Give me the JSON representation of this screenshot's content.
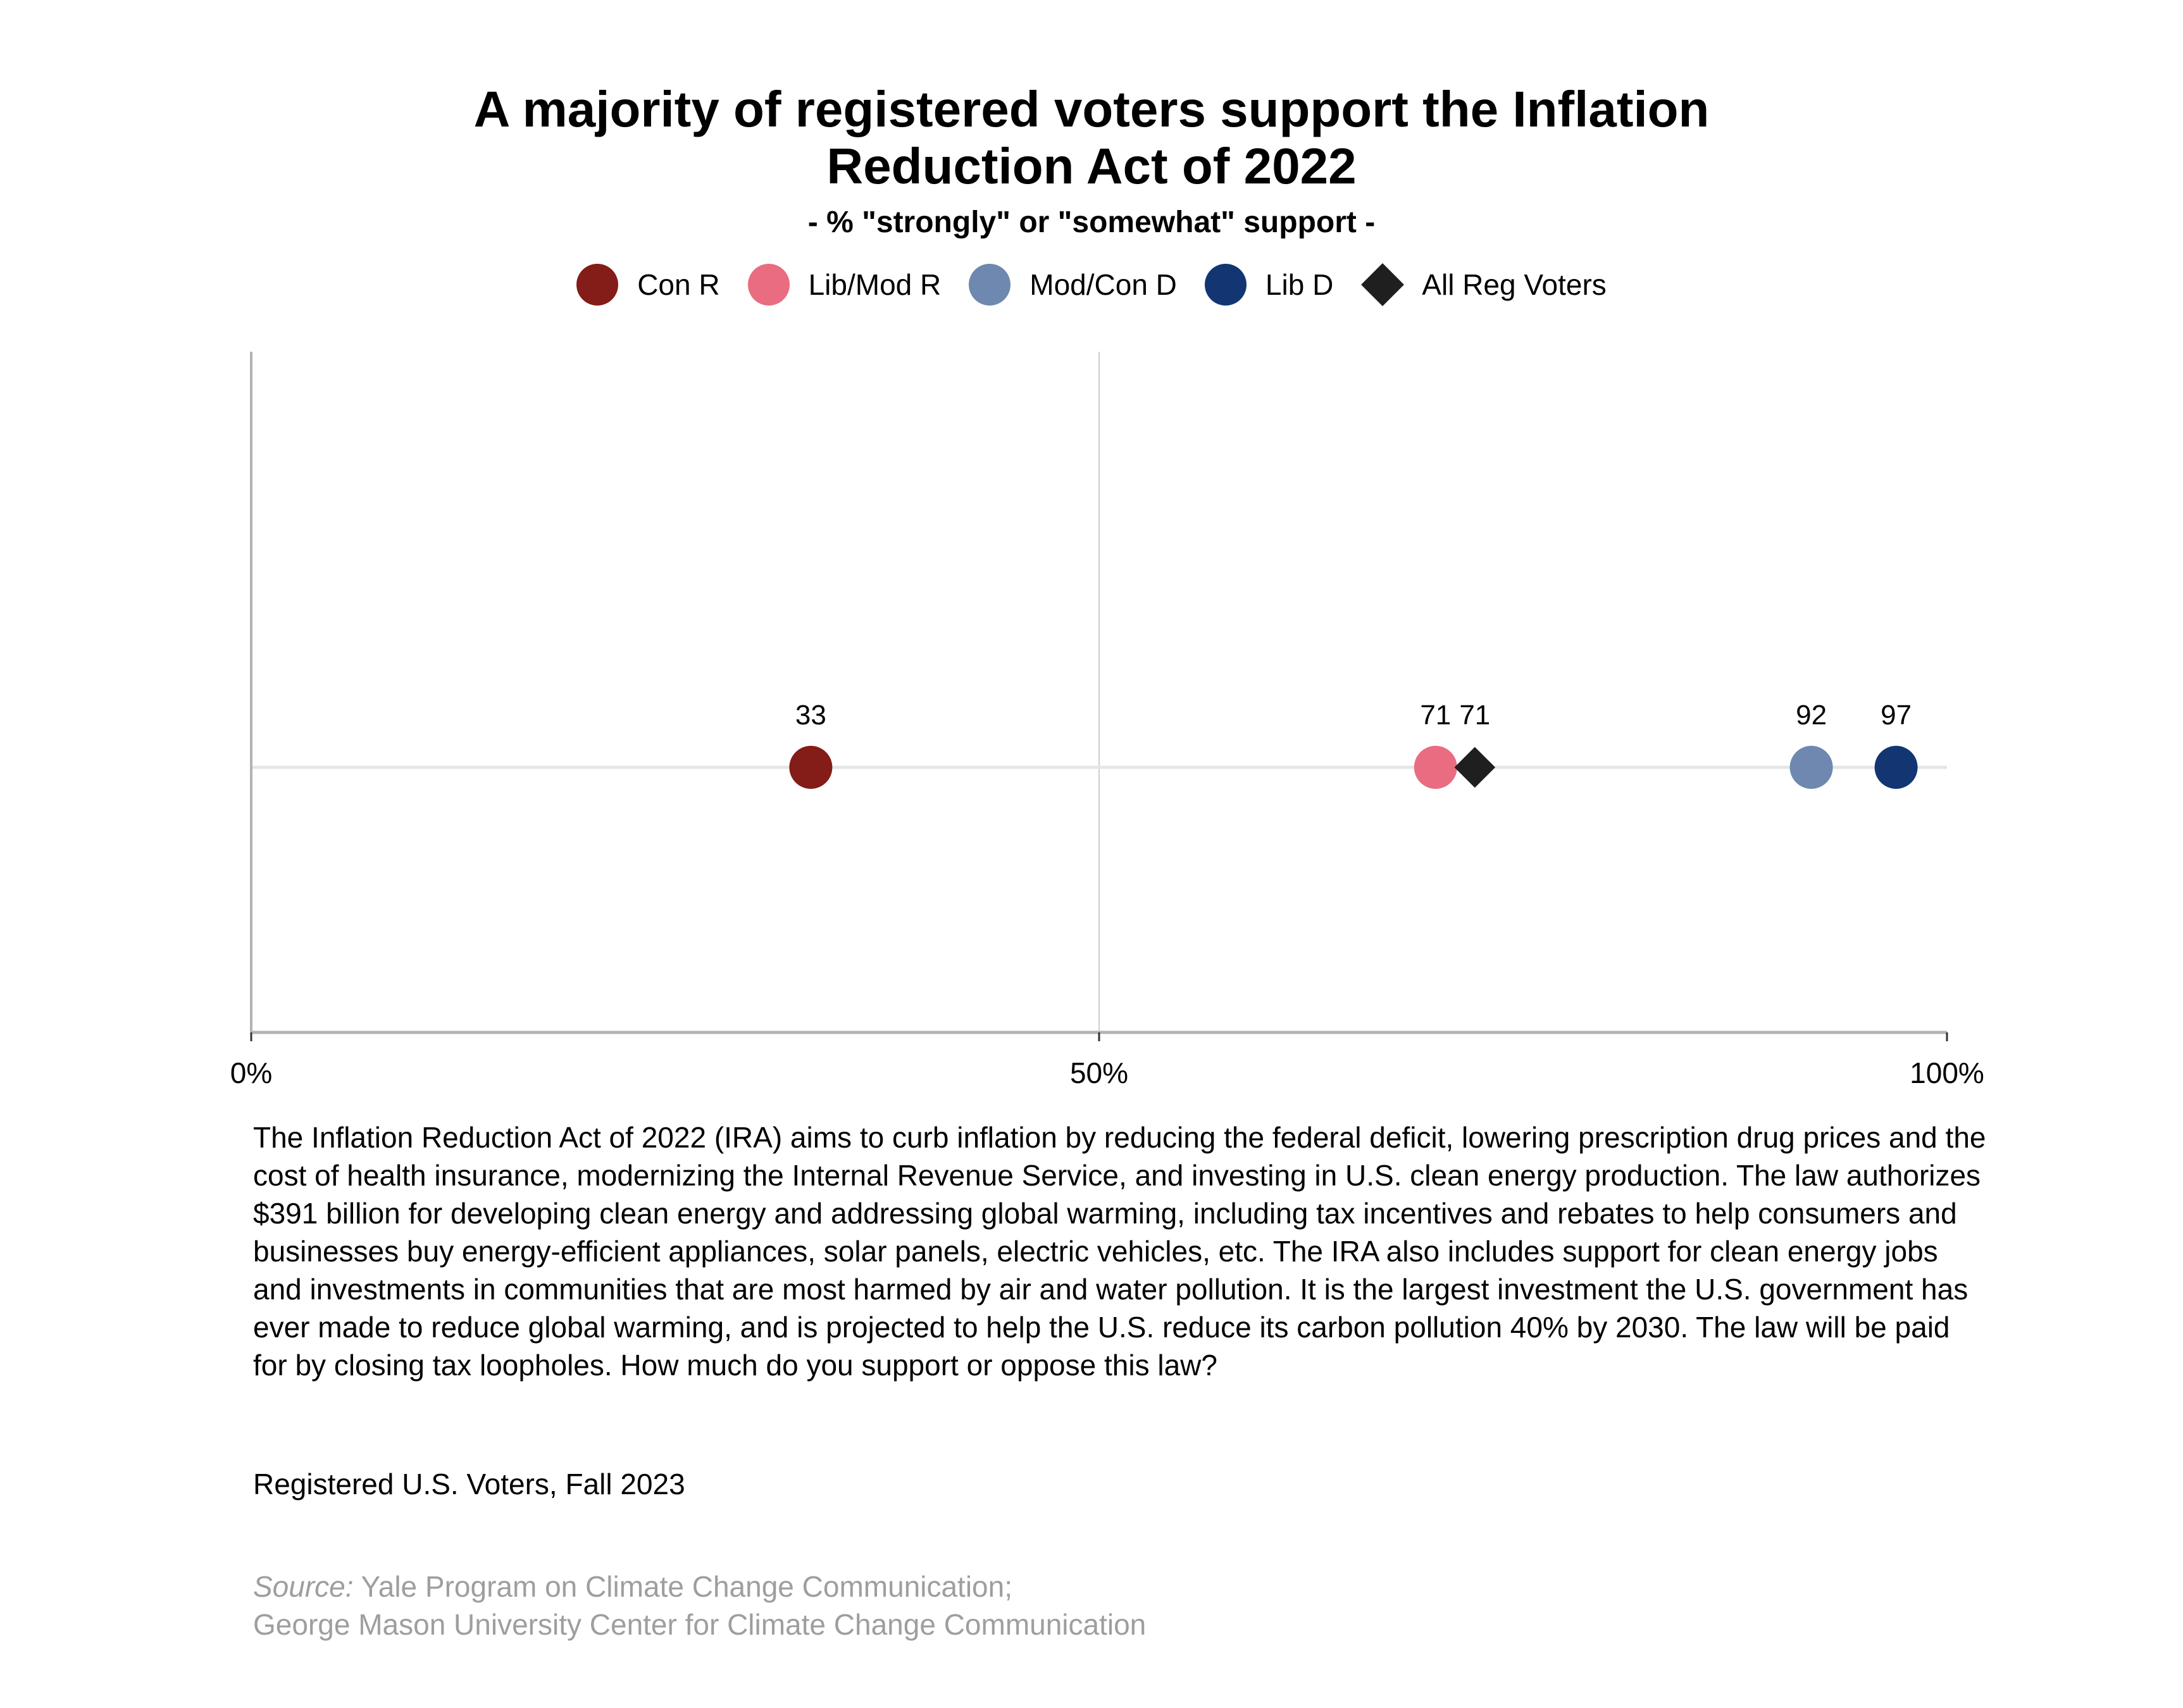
{
  "title_lines": [
    "A majority of registered voters support the Inflation",
    "Reduction Act of 2022"
  ],
  "subtitle": "- % \"strongly\" or \"somewhat\" support -",
  "legend": [
    {
      "label": "Con R",
      "shape": "circle",
      "color": "#841C17"
    },
    {
      "label": "Lib/Mod R",
      "shape": "circle",
      "color": "#E96C81"
    },
    {
      "label": "Mod/Con D",
      "shape": "circle",
      "color": "#6E88B0"
    },
    {
      "label": "Lib D",
      "shape": "circle",
      "color": "#133672"
    },
    {
      "label": "All Reg Voters",
      "shape": "diamond",
      "color": "#1F1F1F"
    }
  ],
  "chart_data": {
    "type": "scatter",
    "subtype": "dot-plot",
    "title": "A majority of registered voters support the Inflation Reduction Act of 2022",
    "subtitle": "- % \"strongly\" or \"somewhat\" support -",
    "xlabel": "",
    "ylabel": "",
    "xlim": [
      0,
      100
    ],
    "x_ticks": [
      0,
      50,
      100
    ],
    "x_tick_labels": [
      "0%",
      "50%",
      "100%"
    ],
    "grid": "vertical at 50%",
    "legend_position": "top",
    "series": [
      {
        "name": "Con R",
        "value": 33,
        "label": "33",
        "shape": "circle",
        "color": "#841C17"
      },
      {
        "name": "Lib/Mod R",
        "value": 71,
        "label": "71",
        "shape": "circle",
        "color": "#E96C81"
      },
      {
        "name": "All Reg Voters",
        "value": 71,
        "label": "71",
        "shape": "diamond",
        "color": "#1F1F1F"
      },
      {
        "name": "Mod/Con D",
        "value": 92,
        "label": "92",
        "shape": "circle",
        "color": "#6E88B0"
      },
      {
        "name": "Lib D",
        "value": 97,
        "label": "97",
        "shape": "circle",
        "color": "#133672"
      }
    ]
  },
  "question_text": "The Inflation Reduction Act of 2022 (IRA) aims to curb inflation by reducing the federal deficit, lowering prescription drug prices and the cost of health insurance, modernizing the Internal Revenue Service, and investing in U.S. clean energy production. The law authorizes $391 billion for developing clean energy and addressing global warming, including tax incentives and rebates to help consumers and businesses buy energy-efficient appliances, solar panels, electric vehicles, etc. The IRA also includes support for clean energy jobs and investments in communities that are most harmed by air and water pollution. It is the largest investment the U.S. government has ever made to reduce global warming, and is projected to help the U.S. reduce its carbon pollution 40% by 2030. The law will be paid for by closing tax loopholes. How much do you support or oppose this law?",
  "sample": "Registered U.S. Voters, Fall 2023",
  "source": {
    "prefix": "Source:",
    "line1": " Yale Program on Climate Change Communication;",
    "line2": "George Mason University Center for Climate Change Communication"
  }
}
